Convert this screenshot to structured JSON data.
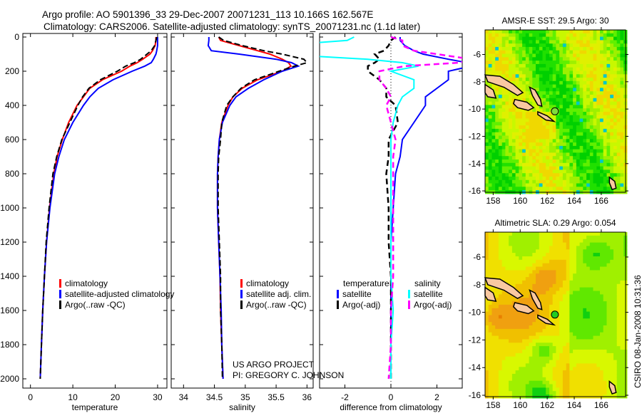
{
  "header": {
    "line1": "Argo profile: AO 5901396_33 29-Dec-2007 20071231_113 10.166S 162.567E",
    "line2": "Climatology: CARS2006. Satellite-adjusted climatology: synTS_20071231.nc (1.1d later)"
  },
  "credit": {
    "line1": "US ARGO PROJECT",
    "line2": "PI: GREGORY C. JOHNSON"
  },
  "stamp": "CSIRO 08-Jan-2008 10:31:36",
  "colors": {
    "climatology": "#ff0000",
    "satellite": "#0000ff",
    "argo": "#000000",
    "sal_satellite": "#00ffff",
    "sal_argo": "#ff00ff"
  },
  "chart_data": [
    {
      "type": "line",
      "name": "temperature-profile",
      "xlabel": "temperature",
      "ylabel": "",
      "xlim": [
        -2,
        32
      ],
      "ylim": [
        2000,
        0
      ],
      "xticks": [
        "0",
        "10",
        "20",
        "30"
      ],
      "xtick_values": [
        0,
        10,
        20,
        30
      ],
      "yticks": [
        "0",
        "200",
        "400",
        "600",
        "800",
        "1000",
        "1200",
        "1400",
        "1600",
        "1800",
        "2000"
      ],
      "ytick_values": [
        0,
        200,
        400,
        600,
        800,
        1000,
        1200,
        1400,
        1600,
        1800,
        2000
      ],
      "legend": [
        "climatology",
        "satellite-adjusted climatology",
        "Argo(..raw -QC)"
      ],
      "depth": [
        0,
        20,
        50,
        80,
        100,
        130,
        150,
        170,
        200,
        250,
        300,
        350,
        400,
        500,
        600,
        700,
        800,
        1000,
        1200,
        1400,
        1600,
        1800,
        2000
      ],
      "series": [
        {
          "name": "climatology",
          "values": [
            29.6,
            29.6,
            29.4,
            28.8,
            28.2,
            26.5,
            25.2,
            23.5,
            21.5,
            17,
            14,
            12.5,
            11,
            9,
            7.5,
            6.3,
            5.5,
            4.5,
            3.8,
            3.3,
            2.9,
            2.6,
            2.3
          ]
        },
        {
          "name": "satellite-adjusted climatology",
          "values": [
            30,
            30,
            30,
            29.8,
            29.6,
            29,
            28.5,
            27,
            24,
            19.5,
            16,
            14,
            12.5,
            10,
            8,
            6.7,
            5.7,
            4.6,
            3.8,
            3.3,
            2.9,
            2.6,
            2.3
          ]
        },
        {
          "name": "Argo",
          "values": [
            29.8,
            29.6,
            29.3,
            28.5,
            27.5,
            26,
            24.5,
            22.5,
            20.5,
            16.5,
            13.8,
            12.3,
            11.2,
            9.3,
            7.4,
            6.2,
            5.3,
            4.4,
            3.7,
            3.3,
            2.9,
            2.6,
            2.3
          ]
        }
      ]
    },
    {
      "type": "line",
      "name": "salinity-profile",
      "xlabel": "salinity",
      "xlim": [
        33.8,
        36.1
      ],
      "ylim": [
        2000,
        0
      ],
      "xticks": [
        "34",
        "34.5",
        "35",
        "35.5",
        "36"
      ],
      "xtick_values": [
        34,
        34.5,
        35,
        35.5,
        36
      ],
      "legend": [
        "climatology",
        "satellite adj. clim.",
        "Argo(..raw -QC)"
      ],
      "depth": [
        0,
        20,
        50,
        80,
        100,
        130,
        150,
        170,
        200,
        250,
        300,
        350,
        400,
        500,
        600,
        700,
        800,
        1000,
        1200,
        1400,
        1600,
        1800,
        2000
      ],
      "series": [
        {
          "name": "climatology",
          "values": [
            34.57,
            34.6,
            34.9,
            35.2,
            35.4,
            35.6,
            35.7,
            35.74,
            35.6,
            35.2,
            34.95,
            34.8,
            34.72,
            34.62,
            34.58,
            34.56,
            34.55,
            34.55,
            34.57,
            34.59,
            34.6,
            34.62,
            34.64
          ]
        },
        {
          "name": "satellite adj. clim.",
          "values": [
            34.41,
            34.41,
            34.4,
            34.45,
            34.9,
            35.5,
            35.75,
            35.86,
            35.6,
            35.3,
            35.05,
            34.85,
            34.75,
            34.63,
            34.58,
            34.56,
            34.55,
            34.55,
            34.57,
            34.59,
            34.61,
            34.62,
            34.64
          ]
        },
        {
          "name": "Argo",
          "values": [
            34.57,
            34.65,
            34.95,
            35.3,
            35.6,
            35.95,
            36.0,
            35.8,
            35.55,
            35.15,
            34.93,
            34.8,
            34.7,
            34.62,
            34.6,
            34.57,
            34.56,
            34.56,
            34.58,
            34.6,
            34.6,
            34.62,
            34.63
          ]
        }
      ]
    },
    {
      "type": "line",
      "name": "difference-profile",
      "xlabel": "difference from climatology",
      "xlim": [
        -3.1,
        3.1
      ],
      "ylim": [
        2000,
        0
      ],
      "xticks": [
        "-2",
        "0",
        "2"
      ],
      "xtick_values": [
        -2,
        0,
        2
      ],
      "legend_temperature": {
        "title": "temperature",
        "items": [
          "satellite",
          "Argo(-adj)"
        ]
      },
      "legend_salinity": {
        "title": "salinity",
        "items": [
          "satellite",
          "Argo(-adj)"
        ]
      },
      "note": "temperature differences plotted as-is; salinity differences scaled x10"
    },
    {
      "type": "heatmap",
      "name": "sst-map",
      "title": "AMSR-E SST: 29.5 Argo: 30",
      "xlim": [
        157.4,
        167.8
      ],
      "ylim": [
        -16.1,
        -4.2
      ],
      "xticks": [
        "158",
        "160",
        "162",
        "164",
        "166"
      ],
      "xtick_values": [
        158,
        160,
        162,
        164,
        166
      ],
      "yticks": [
        "-6",
        "-8",
        "-10",
        "-12",
        "-14",
        "-16"
      ],
      "ytick_values": [
        -6,
        -8,
        -10,
        -12,
        -14,
        -16
      ],
      "argo_lon": 162.567,
      "argo_lat": -10.166,
      "argo_marker_color": "#7fdc3c"
    },
    {
      "type": "heatmap",
      "name": "sla-map",
      "title": "Altimetric SLA: 0.29 Argo: 0.054",
      "xlim": [
        157.4,
        167.8
      ],
      "ylim": [
        -16.1,
        -4.2
      ],
      "xticks": [
        "158",
        "160",
        "162",
        "164",
        "166"
      ],
      "xtick_values": [
        158,
        160,
        162,
        164,
        166
      ],
      "yticks": [
        "-6",
        "-8",
        "-10",
        "-12",
        "-14",
        "-16"
      ],
      "ytick_values": [
        -6,
        -8,
        -10,
        -12,
        -14,
        -16
      ],
      "argo_lon": 162.567,
      "argo_lat": -10.166,
      "argo_marker_color": "#22cc22"
    }
  ]
}
